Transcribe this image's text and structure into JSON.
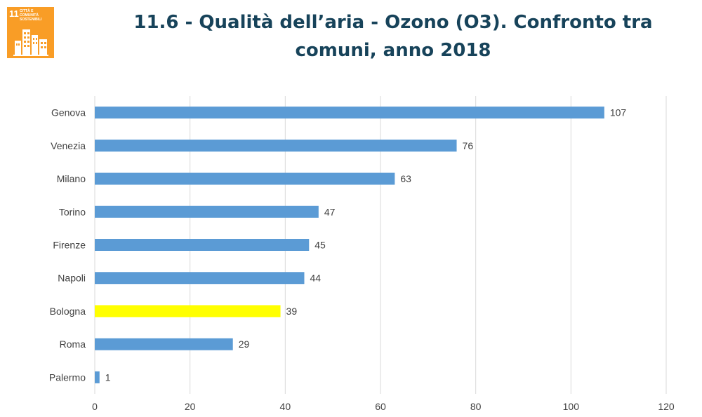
{
  "badge": {
    "number": "11",
    "text": "Città e comunità sostenibili",
    "color": "#f99d26"
  },
  "chart_data": {
    "type": "bar",
    "orientation": "horizontal",
    "title": "11.6 - Qualità dell’aria - Ozono (O3). Confronto tra comuni, anno 2018",
    "categories": [
      "Genova",
      "Venezia",
      "Milano",
      "Torino",
      "Firenze",
      "Napoli",
      "Bologna",
      "Roma",
      "Palermo"
    ],
    "values": [
      107,
      76,
      63,
      47,
      45,
      44,
      39,
      29,
      1
    ],
    "xlim": [
      0,
      120
    ],
    "xticks": [
      0,
      20,
      40,
      60,
      80,
      100,
      120
    ],
    "grid": true,
    "data_labels": true,
    "bar_color": "#5b9bd5",
    "highlight_category": "Bologna",
    "highlight_color": "#ffff00"
  }
}
